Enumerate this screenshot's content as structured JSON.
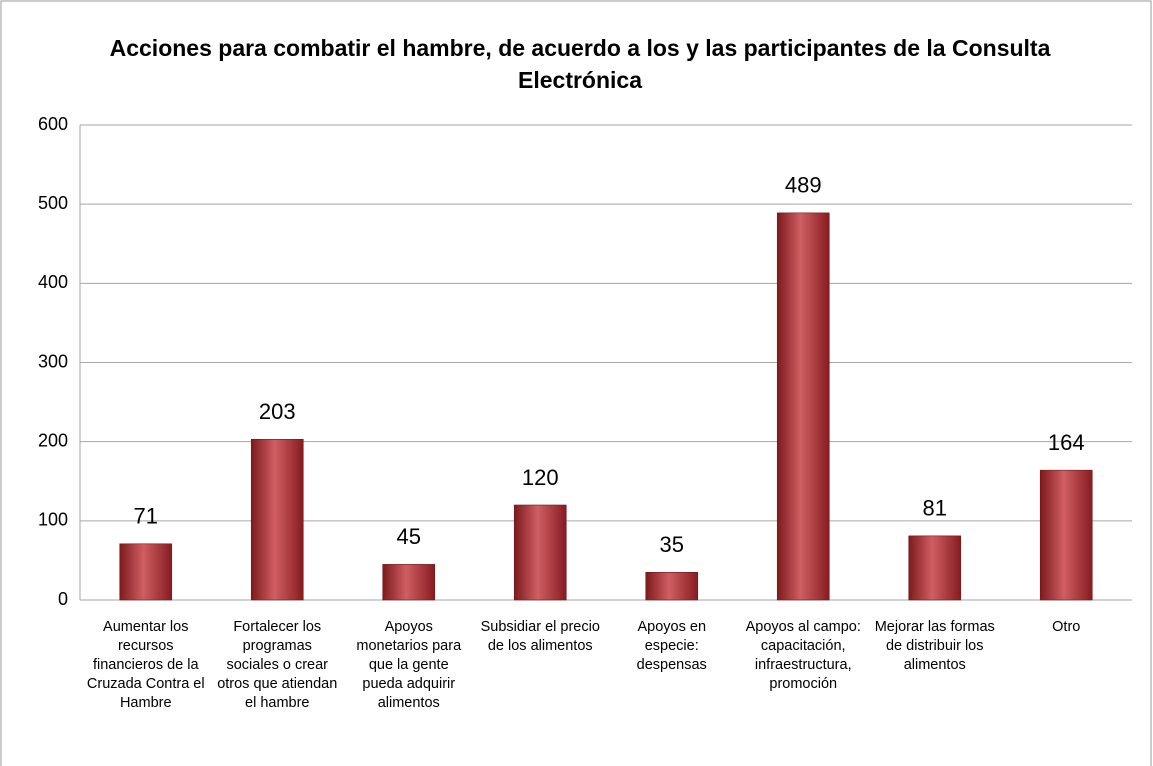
{
  "chart_data": {
    "type": "bar",
    "title": "Acciones para combatir el hambre, de acuerdo a los y las participantes de la Consulta Electrónica",
    "categories": [
      "Aumentar los recursos financieros de la Cruzada Contra el Hambre",
      "Fortalecer los programas sociales o crear otros que atiendan el hambre",
      "Apoyos monetarios para que la gente pueda adquirir alimentos",
      "Subsidiar el precio de los alimentos",
      "Apoyos en especie: despensas",
      "Apoyos al campo: capacitación, infraestructura, promoción",
      "Mejorar las formas de distribuir los alimentos",
      "Otro"
    ],
    "values": [
      71,
      203,
      45,
      120,
      35,
      489,
      81,
      164
    ],
    "color": "#c0282d",
    "ylim": [
      0,
      600
    ],
    "yticks": [
      0,
      100,
      200,
      300,
      400,
      500,
      600
    ],
    "grid": true
  }
}
